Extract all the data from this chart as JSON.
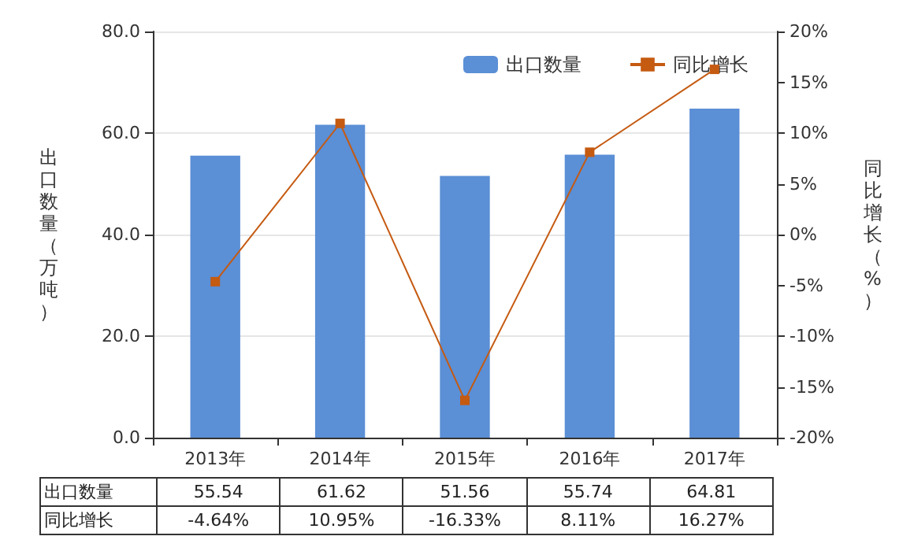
{
  "chart_data": {
    "type": "bar",
    "categories": [
      "2013年",
      "2014年",
      "2015年",
      "2016年",
      "2017年"
    ],
    "ylabel": "出口数量（万吨）",
    "y2label": "同比增长（%）",
    "series": [
      {
        "name": "出口数量",
        "color": "#5b8fd6",
        "values": [
          55.54,
          61.62,
          51.56,
          55.74,
          64.81
        ],
        "value_labels": [
          "55.54",
          "61.62",
          "51.56",
          "55.74",
          "64.81"
        ]
      },
      {
        "name": "同比增长",
        "type": "line",
        "axis": "y2",
        "color": "#c55a11",
        "values": [
          -4.64,
          10.95,
          -16.33,
          8.11,
          16.27
        ],
        "value_labels": [
          "-4.64%",
          "10.95%",
          "-16.33%",
          "8.11%",
          "16.27%"
        ]
      }
    ],
    "ylim": [
      0,
      80
    ],
    "yticks": [
      {
        "value": 0,
        "label": "0.0"
      },
      {
        "value": 20,
        "label": "20.0"
      },
      {
        "value": 40,
        "label": "40.0"
      },
      {
        "value": 60,
        "label": "60.0"
      },
      {
        "value": 80,
        "label": "80.0"
      }
    ],
    "y2lim": [
      -20,
      20
    ],
    "y2ticks": [
      {
        "value": -20,
        "label": "-20%"
      },
      {
        "value": -15,
        "label": "-15%"
      },
      {
        "value": -10,
        "label": "-10%"
      },
      {
        "value": -5,
        "label": "-5%"
      },
      {
        "value": 0,
        "label": "0%"
      },
      {
        "value": 5,
        "label": "5%"
      },
      {
        "value": 10,
        "label": "10%"
      },
      {
        "value": 15,
        "label": "15%"
      },
      {
        "value": 20,
        "label": "20%"
      }
    ],
    "grid": "y",
    "legend": "top right",
    "marker": "square",
    "line_style": "solid"
  }
}
